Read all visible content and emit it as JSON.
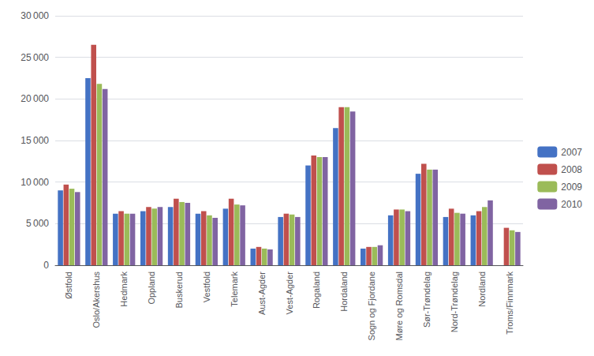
{
  "chart_data": {
    "type": "bar",
    "categories": [
      "Østfold",
      "Oslo/Akershus",
      "Hedmark",
      "Oppland",
      "Buskerud",
      "Vestfold",
      "Telemark",
      "Aust-Agder",
      "Vest-Agder",
      "Rogaland",
      "Hordaland",
      "Sogn og Fjordane",
      "Møre og Romsdal",
      "Sør-Trøndelag",
      "Nord-Trøndelag",
      "Nordland",
      "Troms/Finnmark"
    ],
    "series": [
      {
        "name": "2007",
        "color": "#4472C4",
        "values": [
          9000,
          22500,
          6200,
          6500,
          7000,
          6200,
          6800,
          2000,
          5800,
          12000,
          16500,
          2000,
          6000,
          11000,
          5800,
          6000,
          0
        ]
      },
      {
        "name": "2008",
        "color": "#C0504D",
        "values": [
          9700,
          26500,
          6500,
          7000,
          8000,
          6500,
          8000,
          2200,
          6200,
          13200,
          19000,
          2200,
          6700,
          12200,
          6800,
          6500,
          4500
        ]
      },
      {
        "name": "2009",
        "color": "#9BBB59",
        "values": [
          9200,
          21800,
          6200,
          6800,
          7600,
          6000,
          7300,
          2000,
          6100,
          13000,
          19000,
          2200,
          6700,
          11500,
          6300,
          7000,
          4200
        ]
      },
      {
        "name": "2010",
        "color": "#8064A2",
        "values": [
          8800,
          21200,
          6200,
          7000,
          7500,
          5700,
          7200,
          1900,
          5800,
          13000,
          18500,
          2400,
          6500,
          11500,
          6200,
          7800,
          4000
        ]
      }
    ],
    "ylim": [
      0,
      30000
    ],
    "yticks": [
      0,
      {
        "value": 5000,
        "label": "5 000"
      },
      {
        "value": 10000,
        "label": "10 000"
      },
      {
        "value": 15000,
        "label": "15 000"
      },
      {
        "value": 20000,
        "label": "20 000"
      },
      {
        "value": 25000,
        "label": "25 000"
      },
      {
        "value": 30000,
        "label": "30 000"
      }
    ],
    "grid": true,
    "legend": "right"
  }
}
